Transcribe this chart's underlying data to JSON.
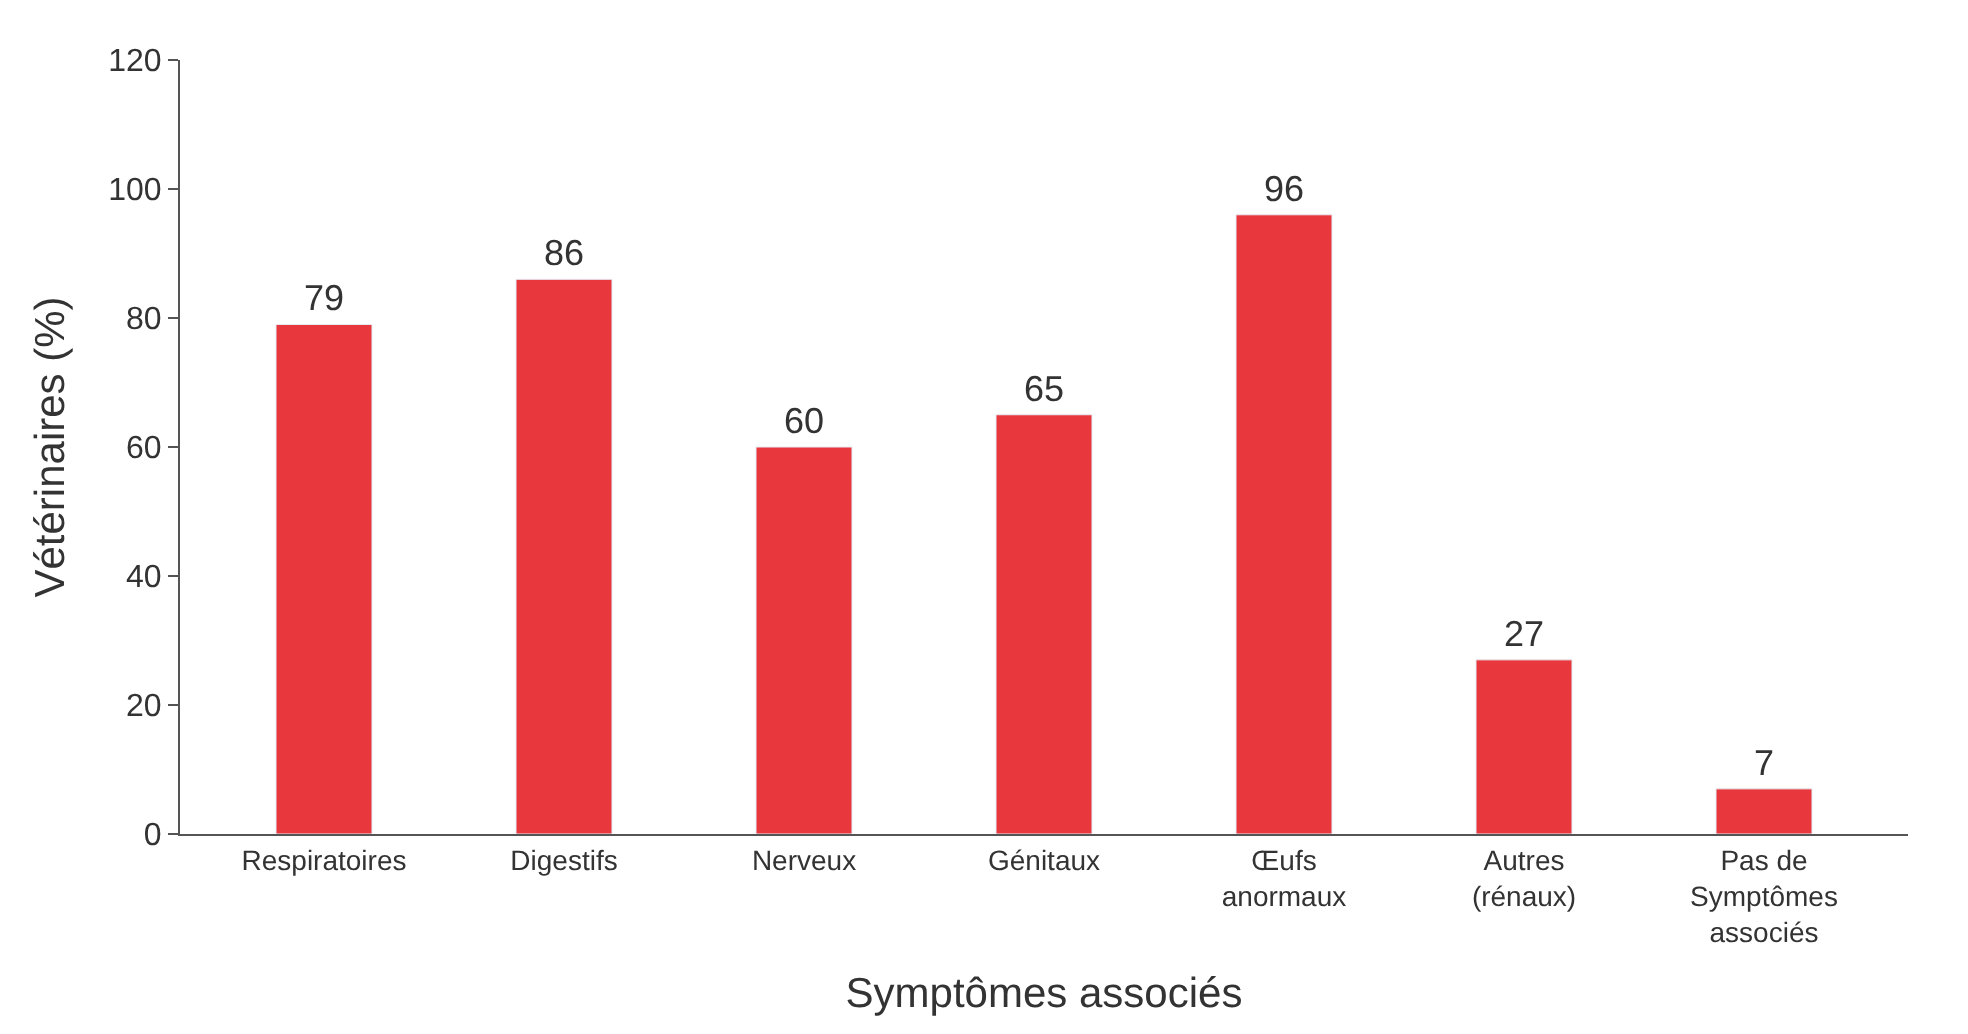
{
  "chart_data": {
    "type": "bar",
    "xlabel": "Symptômes associés",
    "ylabel": "Vétérinaires (%)",
    "categories": [
      "Respiratoires",
      "Digestifs",
      "Nerveux",
      "Génitaux",
      "Œufs\nanormaux",
      "Autres\n(rénaux)",
      "Pas de\nSymptômes\nassociés"
    ],
    "values": [
      79,
      86,
      60,
      65,
      96,
      27,
      7
    ],
    "color": "#e8383d",
    "ylim": [
      0,
      120
    ],
    "yticks": [
      0,
      20,
      40,
      60,
      80,
      100,
      120
    ],
    "grid": false,
    "legend": false,
    "data_labels": true
  }
}
